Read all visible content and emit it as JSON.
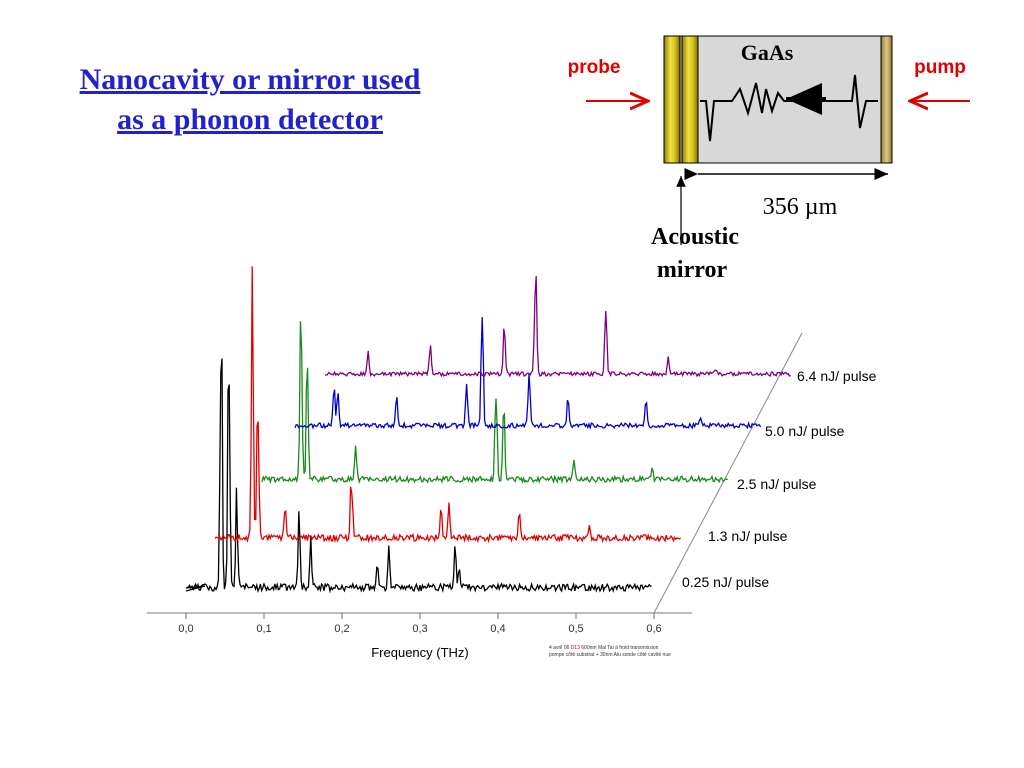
{
  "slide": {
    "title_line1": "Nanocavity or mirror used",
    "title_line2": "as a phonon detector"
  },
  "diagram": {
    "probe_label": "probe",
    "pump_label": "pump",
    "sample_label": "GaAs",
    "thickness_label": "356 µm",
    "mirror_label_line1": "Acoustic",
    "mirror_label_line2": "mirror",
    "colors": {
      "arrow": "#e00000",
      "sample": "#d8d8d8",
      "mirror": "#c9b800"
    }
  },
  "footnote": {
    "line1_a": "4 avril 06",
    "line1_b": "D13",
    "line1_c": "600nm Mai Tai à froid transmission",
    "line2": "pompe côté substrat + 30nm Alu sonde côté cavité nue"
  },
  "chart_data": {
    "type": "line",
    "title": "",
    "xlabel": "Frequency (THz)",
    "ylabel": "",
    "xlim": [
      0.0,
      0.65
    ],
    "x_ticks": [
      "0,0",
      "0,1",
      "0,2",
      "0,3",
      "0,4",
      "0,5",
      "0,6"
    ],
    "layout": "waterfall (3D offset)",
    "grid": false,
    "series": [
      {
        "name": "0.25 nJ/ pulse",
        "color": "#000000",
        "peaks": [
          [
            0.045,
            1.0
          ],
          [
            0.055,
            0.85
          ],
          [
            0.065,
            0.3
          ],
          [
            0.145,
            0.25
          ],
          [
            0.16,
            0.15
          ],
          [
            0.245,
            0.08
          ],
          [
            0.26,
            0.12
          ],
          [
            0.345,
            0.12
          ],
          [
            0.35,
            0.08
          ]
        ]
      },
      {
        "name": "1.3 nJ/ pulse",
        "color": "#e00000",
        "peaks": [
          [
            0.048,
            1.0
          ],
          [
            0.055,
            0.6
          ],
          [
            0.09,
            0.15
          ],
          [
            0.175,
            0.25
          ],
          [
            0.29,
            0.1
          ],
          [
            0.3,
            0.12
          ],
          [
            0.39,
            0.1
          ],
          [
            0.48,
            0.04
          ]
        ]
      },
      {
        "name": "2.5 nJ/ pulse",
        "color": "#1a8a1a",
        "peaks": [
          [
            0.05,
            0.85
          ],
          [
            0.058,
            0.5
          ],
          [
            0.12,
            0.12
          ],
          [
            0.3,
            0.4
          ],
          [
            0.31,
            0.35
          ],
          [
            0.4,
            0.1
          ],
          [
            0.5,
            0.05
          ]
        ]
      },
      {
        "name": "5.0 nJ/ pulse",
        "color": "#0000cc",
        "peaks": [
          [
            0.05,
            0.25
          ],
          [
            0.055,
            0.2
          ],
          [
            0.13,
            0.15
          ],
          [
            0.22,
            0.2
          ],
          [
            0.24,
            0.6
          ],
          [
            0.3,
            0.3
          ],
          [
            0.35,
            0.15
          ],
          [
            0.45,
            0.15
          ],
          [
            0.52,
            0.05
          ]
        ]
      },
      {
        "name": "6.4 nJ/ pulse",
        "color": "#800080",
        "peaks": [
          [
            0.055,
            0.15
          ],
          [
            0.135,
            0.2
          ],
          [
            0.23,
            0.3
          ],
          [
            0.27,
            0.8
          ],
          [
            0.36,
            0.45
          ],
          [
            0.44,
            0.1
          ],
          [
            0.5,
            0.04
          ]
        ]
      }
    ]
  }
}
